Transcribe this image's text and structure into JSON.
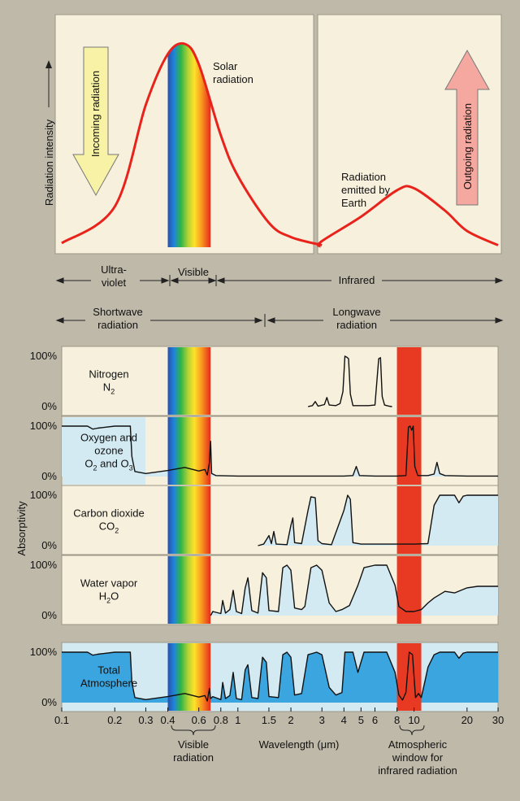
{
  "colors": {
    "page": "#bfb9a9",
    "panel_cream": "#f7f0dd",
    "panel_blue": "#d3eaf3",
    "total_blue": "#3aa5df",
    "red_curve": "#e8231c",
    "window_red": "#e83a22",
    "arrow_yellow": "#f7f2a6",
    "arrow_pink": "#f4a8a0"
  },
  "top": {
    "ylabel": "Radiation intensity",
    "incoming": "Incoming radiation",
    "outgoing": "Outgoing radiation",
    "solar": [
      "Solar",
      "radiation"
    ],
    "earth": [
      "Radiation",
      "emitted by",
      "Earth"
    ]
  },
  "regions": {
    "uv": [
      "Ultra-",
      "violet"
    ],
    "visible": "Visible",
    "infrared": "Infrared",
    "shortwave": [
      "Shortwave",
      "radiation"
    ],
    "longwave": [
      "Longwave",
      "radiation"
    ]
  },
  "absorptivity_label": "Absorptivity",
  "footer": {
    "xlabel": "Wavelength (μm)",
    "visible": [
      "Visible",
      "radiation"
    ],
    "window": [
      "Atmospheric",
      "window for",
      "infrared radiation"
    ]
  },
  "chart_data": [
    {
      "type": "line",
      "title": "Solar radiation",
      "xlabel": "Wavelength (μm)",
      "ylabel": "Radiation intensity",
      "xscale": "log",
      "xlim": [
        0.1,
        30
      ],
      "series": [
        {
          "name": "Solar radiation",
          "x": [
            0.1,
            0.2,
            0.3,
            0.4,
            0.5,
            0.6,
            0.8,
            1.0,
            1.5,
            2.0,
            3.0
          ],
          "y": [
            0.02,
            0.2,
            0.7,
            0.95,
            1.0,
            0.9,
            0.55,
            0.35,
            0.12,
            0.05,
            0.01
          ]
        }
      ]
    },
    {
      "type": "line",
      "title": "Radiation emitted by Earth",
      "xlabel": "Wavelength (μm)",
      "ylabel": "Radiation intensity",
      "xscale": "log",
      "xlim": [
        0.1,
        30
      ],
      "series": [
        {
          "name": "Radiation emitted by Earth",
          "x": [
            1.4,
            3,
            5,
            8,
            10,
            15,
            20,
            30
          ],
          "y": [
            0.0,
            0.03,
            0.15,
            0.28,
            0.29,
            0.18,
            0.08,
            0.01
          ]
        }
      ]
    },
    {
      "type": "area",
      "xscale": "log",
      "xlim": [
        0.1,
        30
      ],
      "ylim": [
        0,
        100
      ],
      "xticks": [
        "0.1",
        "0.2",
        "0.3",
        "0.4",
        "0.6",
        "0.8",
        "1",
        "1.5",
        "2",
        "3",
        "4",
        "5",
        "6",
        "8",
        "10",
        "20",
        "30"
      ],
      "xtick_values": [
        0.1,
        0.2,
        0.3,
        0.4,
        0.6,
        0.8,
        1,
        1.5,
        2,
        3,
        4,
        5,
        6,
        8,
        10,
        20,
        30
      ],
      "visible_band": [
        0.4,
        0.7
      ],
      "window_band": [
        8,
        11
      ],
      "yticks": [
        "100%",
        "0%"
      ],
      "panels": [
        {
          "name": "Nitrogen",
          "formula_parts": [
            [
              "N",
              false
            ],
            [
              "2",
              true
            ]
          ],
          "bg": "cream",
          "points": [
            [
              2.5,
              0
            ],
            [
              2.65,
              2
            ],
            [
              2.75,
              10
            ],
            [
              2.85,
              1
            ],
            [
              3.1,
              4
            ],
            [
              3.2,
              18
            ],
            [
              3.3,
              3
            ],
            [
              3.6,
              2
            ],
            [
              3.8,
              6
            ],
            [
              3.95,
              30
            ],
            [
              4.05,
              100
            ],
            [
              4.15,
              98
            ],
            [
              4.25,
              95
            ],
            [
              4.35,
              25
            ],
            [
              4.5,
              2
            ],
            [
              5.5,
              2
            ],
            [
              6.0,
              3
            ],
            [
              6.3,
              95
            ],
            [
              6.45,
              97
            ],
            [
              6.6,
              20
            ],
            [
              6.8,
              3
            ],
            [
              7.2,
              1
            ],
            [
              7.5,
              0
            ]
          ]
        },
        {
          "name": "Oxygen and ozone",
          "formula_parts": [
            [
              "O",
              false
            ],
            [
              "2",
              true
            ],
            [
              " and O",
              false
            ],
            [
              "3",
              true
            ]
          ],
          "bg": "blue",
          "points": [
            [
              0.1,
              100
            ],
            [
              0.14,
              100
            ],
            [
              0.15,
              94
            ],
            [
              0.16,
              96
            ],
            [
              0.2,
              100
            ],
            [
              0.22,
              100
            ],
            [
              0.245,
              100
            ],
            [
              0.25,
              40
            ],
            [
              0.26,
              10
            ],
            [
              0.3,
              6
            ],
            [
              0.4,
              12
            ],
            [
              0.5,
              18
            ],
            [
              0.6,
              11
            ],
            [
              0.65,
              14
            ],
            [
              0.67,
              3
            ],
            [
              0.69,
              28
            ],
            [
              0.7,
              70
            ],
            [
              0.71,
              6
            ],
            [
              0.75,
              2
            ],
            [
              1,
              1
            ],
            [
              2,
              1
            ],
            [
              4,
              1
            ],
            [
              4.5,
              2
            ],
            [
              4.7,
              20
            ],
            [
              4.9,
              2
            ],
            [
              6,
              1
            ],
            [
              8,
              1
            ],
            [
              9,
              2
            ],
            [
              9.3,
              98
            ],
            [
              9.5,
              100
            ],
            [
              9.7,
              92
            ],
            [
              9.9,
              100
            ],
            [
              10.1,
              20
            ],
            [
              10.5,
              2
            ],
            [
              12,
              2
            ],
            [
              13,
              5
            ],
            [
              13.5,
              28
            ],
            [
              14,
              6
            ],
            [
              15,
              2
            ],
            [
              20,
              1
            ],
            [
              30,
              1
            ]
          ]
        },
        {
          "name": "Carbon dioxide",
          "formula_parts": [
            [
              "CO",
              false
            ],
            [
              "2",
              true
            ]
          ],
          "bg": "blue",
          "points": [
            [
              1.3,
              0
            ],
            [
              1.4,
              3
            ],
            [
              1.5,
              20
            ],
            [
              1.55,
              4
            ],
            [
              1.6,
              28
            ],
            [
              1.65,
              3
            ],
            [
              1.9,
              2
            ],
            [
              2.0,
              40
            ],
            [
              2.05,
              55
            ],
            [
              2.1,
              6
            ],
            [
              2.3,
              4
            ],
            [
              2.5,
              70
            ],
            [
              2.6,
              97
            ],
            [
              2.75,
              95
            ],
            [
              2.85,
              10
            ],
            [
              3.0,
              4
            ],
            [
              3.4,
              2
            ],
            [
              4.0,
              70
            ],
            [
              4.2,
              100
            ],
            [
              4.35,
              92
            ],
            [
              4.5,
              6
            ],
            [
              5,
              3
            ],
            [
              8,
              3
            ],
            [
              10,
              3
            ],
            [
              12,
              4
            ],
            [
              13,
              80
            ],
            [
              14,
              100
            ],
            [
              15,
              100
            ],
            [
              17,
              100
            ],
            [
              18,
              85
            ],
            [
              19,
              98
            ],
            [
              20,
              100
            ],
            [
              30,
              100
            ]
          ]
        },
        {
          "name": "Water vapor",
          "formula_parts": [
            [
              "H",
              false
            ],
            [
              "2",
              true
            ],
            [
              "O",
              false
            ]
          ],
          "bg": "blue",
          "points": [
            [
              0.7,
              0
            ],
            [
              0.72,
              8
            ],
            [
              0.8,
              4
            ],
            [
              0.82,
              30
            ],
            [
              0.85,
              5
            ],
            [
              0.9,
              12
            ],
            [
              0.94,
              50
            ],
            [
              0.98,
              8
            ],
            [
              1.05,
              4
            ],
            [
              1.1,
              55
            ],
            [
              1.14,
              75
            ],
            [
              1.2,
              10
            ],
            [
              1.3,
              5
            ],
            [
              1.38,
              85
            ],
            [
              1.45,
              75
            ],
            [
              1.5,
              10
            ],
            [
              1.7,
              8
            ],
            [
              1.8,
              95
            ],
            [
              1.9,
              100
            ],
            [
              2.0,
              90
            ],
            [
              2.1,
              15
            ],
            [
              2.3,
              12
            ],
            [
              2.4,
              18
            ],
            [
              2.6,
              95
            ],
            [
              2.8,
              100
            ],
            [
              3.0,
              90
            ],
            [
              3.3,
              25
            ],
            [
              3.6,
              8
            ],
            [
              3.9,
              12
            ],
            [
              4.3,
              20
            ],
            [
              4.8,
              60
            ],
            [
              5.2,
              95
            ],
            [
              6,
              100
            ],
            [
              7,
              100
            ],
            [
              7.8,
              60
            ],
            [
              8.2,
              18
            ],
            [
              9,
              8
            ],
            [
              10,
              8
            ],
            [
              11,
              12
            ],
            [
              12,
              25
            ],
            [
              13,
              35
            ],
            [
              15,
              48
            ],
            [
              17,
              45
            ],
            [
              20,
              55
            ],
            [
              23,
              58
            ],
            [
              30,
              58
            ]
          ]
        },
        {
          "name": "Total Atmosphere",
          "formula_parts": [],
          "bg": "total",
          "points": [
            [
              0.1,
              100
            ],
            [
              0.14,
              100
            ],
            [
              0.15,
              94
            ],
            [
              0.16,
              96
            ],
            [
              0.2,
              100
            ],
            [
              0.22,
              100
            ],
            [
              0.245,
              100
            ],
            [
              0.25,
              40
            ],
            [
              0.26,
              10
            ],
            [
              0.3,
              6
            ],
            [
              0.4,
              12
            ],
            [
              0.5,
              18
            ],
            [
              0.6,
              11
            ],
            [
              0.65,
              14
            ],
            [
              0.67,
              3
            ],
            [
              0.69,
              28
            ],
            [
              0.7,
              8
            ],
            [
              0.72,
              12
            ],
            [
              0.8,
              6
            ],
            [
              0.82,
              40
            ],
            [
              0.85,
              8
            ],
            [
              0.9,
              14
            ],
            [
              0.94,
              60
            ],
            [
              0.98,
              8
            ],
            [
              1.05,
              6
            ],
            [
              1.1,
              65
            ],
            [
              1.14,
              75
            ],
            [
              1.2,
              10
            ],
            [
              1.3,
              8
            ],
            [
              1.38,
              90
            ],
            [
              1.45,
              80
            ],
            [
              1.5,
              12
            ],
            [
              1.7,
              10
            ],
            [
              1.8,
              95
            ],
            [
              1.9,
              100
            ],
            [
              2.0,
              90
            ],
            [
              2.1,
              15
            ],
            [
              2.3,
              18
            ],
            [
              2.5,
              95
            ],
            [
              2.8,
              100
            ],
            [
              3.0,
              95
            ],
            [
              3.3,
              30
            ],
            [
              3.6,
              15
            ],
            [
              3.9,
              20
            ],
            [
              4.05,
              100
            ],
            [
              4.3,
              100
            ],
            [
              4.5,
              100
            ],
            [
              4.8,
              60
            ],
            [
              5.2,
              100
            ],
            [
              6,
              100
            ],
            [
              7,
              100
            ],
            [
              7.8,
              60
            ],
            [
              8.2,
              15
            ],
            [
              8.6,
              5
            ],
            [
              9,
              20
            ],
            [
              9.4,
              100
            ],
            [
              9.8,
              95
            ],
            [
              10.2,
              10
            ],
            [
              10.6,
              18
            ],
            [
              11,
              10
            ],
            [
              11.5,
              40
            ],
            [
              12,
              70
            ],
            [
              13,
              95
            ],
            [
              14,
              100
            ],
            [
              15,
              100
            ],
            [
              17,
              100
            ],
            [
              18,
              88
            ],
            [
              19,
              98
            ],
            [
              20,
              100
            ],
            [
              30,
              100
            ]
          ]
        }
      ]
    }
  ]
}
